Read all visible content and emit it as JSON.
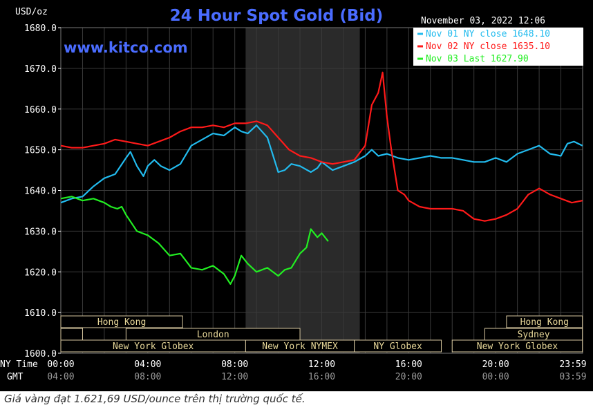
{
  "chart_data": {
    "type": "line",
    "title": "24 Hour Spot Gold (Bid)",
    "unit_label": "USD/oz",
    "watermark": "www.kitco.com",
    "timestamp": "November 03, 2022 12:06",
    "ylim": [
      1600,
      1680
    ],
    "y_ticks": [
      "1680.0",
      "1670.0",
      "1660.0",
      "1650.0",
      "1640.0",
      "1630.0",
      "1620.0",
      "1610.0",
      "1600.0"
    ],
    "x_row_label_ny": "NY Time",
    "x_row_label_gmt": "GMT",
    "x_ticks_ny": [
      "00:00",
      "04:00",
      "08:00",
      "12:00",
      "16:00",
      "20:00",
      "23:59"
    ],
    "x_ticks_gmt": [
      "04:00",
      "08:00",
      "12:00",
      "16:00",
      "20:00",
      "00:00",
      "03:59"
    ],
    "legend": [
      {
        "label": "Nov 01 NY close 1648.10",
        "color": "#22bbee"
      },
      {
        "label": "Nov 02 NY close 1635.10",
        "color": "#ff1a1a"
      },
      {
        "label": "Nov 03 Last 1627.90",
        "color": "#22ee22"
      }
    ],
    "legend_position": "top-right",
    "shaded_session_hours": [
      8.5,
      13.75
    ],
    "sessions": [
      {
        "name": "Hong Kong",
        "row": 0,
        "start": 0,
        "end": 5.6
      },
      {
        "name": "Hong Kong",
        "row": 0,
        "start": 20.5,
        "end": 23.99
      },
      {
        "name": "",
        "row": 1,
        "start": 0,
        "end": 1.0
      },
      {
        "name": "London",
        "row": 1,
        "start": 3.0,
        "end": 11.0
      },
      {
        "name": "Sydney",
        "row": 1,
        "start": 19.5,
        "end": 23.99
      },
      {
        "name": "New York Globex",
        "row": 2,
        "start": 0,
        "end": 8.5
      },
      {
        "name": "New York NYMEX",
        "row": 2,
        "start": 8.5,
        "end": 13.5
      },
      {
        "name": "NY Globex",
        "row": 2,
        "start": 13.5,
        "end": 17.5
      },
      {
        "name": "New York Globex",
        "row": 2,
        "start": 18.0,
        "end": 23.99
      }
    ],
    "series": [
      {
        "name": "Nov 01",
        "color": "#22bbee",
        "x": [
          0,
          0.5,
          1,
          1.5,
          2,
          2.5,
          3,
          3.2,
          3.5,
          3.8,
          4,
          4.3,
          4.6,
          5,
          5.5,
          6,
          6.5,
          7,
          7.5,
          8,
          8.3,
          8.6,
          9,
          9.5,
          10,
          10.3,
          10.6,
          11,
          11.5,
          11.8,
          12,
          12.5,
          13,
          13.5,
          14,
          14.3,
          14.6,
          15,
          15.5,
          16,
          16.5,
          17,
          17.5,
          18,
          18.5,
          19,
          19.5,
          20,
          20.5,
          21,
          21.5,
          22,
          22.5,
          23,
          23.3,
          23.6,
          23.99
        ],
        "values": [
          1637,
          1638,
          1638.5,
          1641,
          1643,
          1644,
          1648,
          1649.5,
          1646,
          1643.5,
          1646,
          1647.5,
          1646,
          1645,
          1646.5,
          1651,
          1652.5,
          1654,
          1653.5,
          1655.5,
          1654.5,
          1654,
          1656,
          1653,
          1644.5,
          1645,
          1646.5,
          1646,
          1644.5,
          1645.5,
          1647,
          1645,
          1646,
          1647,
          1648.5,
          1650,
          1648.5,
          1649,
          1648,
          1647.5,
          1648,
          1648.5,
          1648,
          1648,
          1647.5,
          1647,
          1647,
          1648,
          1647,
          1649,
          1650,
          1651,
          1649,
          1648.5,
          1651.5,
          1652,
          1651
        ]
      },
      {
        "name": "Nov 02",
        "color": "#ff1a1a",
        "x": [
          0,
          0.5,
          1,
          1.5,
          2,
          2.5,
          3,
          3.5,
          4,
          4.5,
          5,
          5.5,
          6,
          6.5,
          7,
          7.5,
          8,
          8.5,
          9,
          9.5,
          10,
          10.5,
          11,
          11.5,
          12,
          12.5,
          13,
          13.5,
          14,
          14.3,
          14.6,
          14.8,
          15,
          15.2,
          15.5,
          15.8,
          16,
          16.5,
          17,
          17.5,
          18,
          18.5,
          19,
          19.5,
          20,
          20.5,
          21,
          21.5,
          22,
          22.5,
          23,
          23.5,
          23.99
        ],
        "values": [
          1651,
          1650.5,
          1650.5,
          1651,
          1651.5,
          1652.5,
          1652,
          1651.5,
          1651,
          1652,
          1653,
          1654.5,
          1655.5,
          1655.5,
          1656,
          1655.5,
          1656.5,
          1656.5,
          1657,
          1656,
          1653,
          1650,
          1648.5,
          1648,
          1647,
          1646.5,
          1647,
          1647.5,
          1651,
          1661,
          1664,
          1669,
          1658,
          1650,
          1640,
          1639,
          1637.5,
          1636,
          1635.5,
          1635.5,
          1635.5,
          1635,
          1633,
          1632.5,
          1633,
          1634,
          1635.5,
          1639,
          1640.5,
          1639,
          1638,
          1637,
          1637.5
        ]
      },
      {
        "name": "Nov 03",
        "color": "#22ee22",
        "x": [
          0,
          0.5,
          1,
          1.5,
          2,
          2.3,
          2.6,
          2.8,
          3,
          3.5,
          4,
          4.5,
          5,
          5.5,
          6,
          6.5,
          7,
          7.5,
          7.8,
          8,
          8.3,
          8.6,
          9,
          9.5,
          10,
          10.3,
          10.6,
          11,
          11.3,
          11.5,
          11.8,
          12,
          12.3
        ],
        "values": [
          1638,
          1638.5,
          1637.5,
          1638,
          1637,
          1636,
          1635.5,
          1636,
          1634,
          1630,
          1629,
          1627,
          1624,
          1624.5,
          1621,
          1620.5,
          1621.5,
          1619.5,
          1617,
          1619,
          1624,
          1622,
          1620,
          1621,
          1619,
          1620.5,
          1621,
          1624.5,
          1626,
          1630.5,
          1628.5,
          1629.5,
          1627.5
        ]
      }
    ]
  },
  "caption": "Giá vàng đạt 1.621,69 USD/ounce trên thị trường quốc tế."
}
